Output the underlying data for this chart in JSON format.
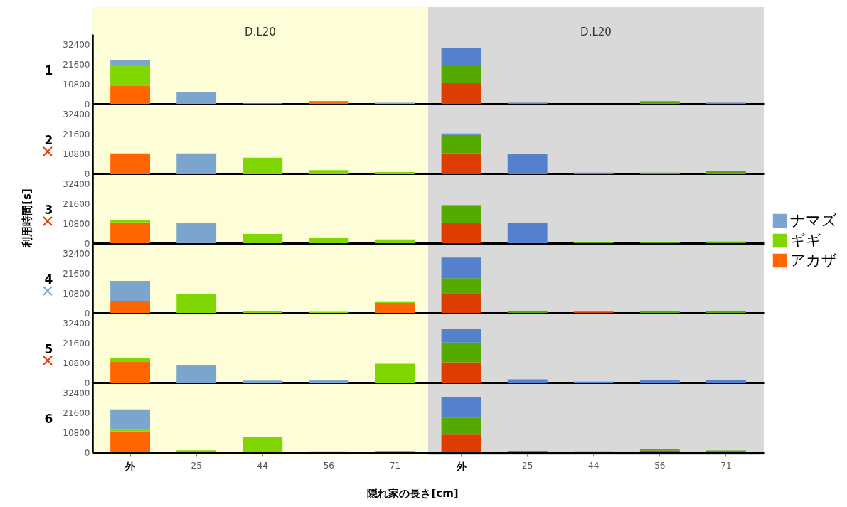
{
  "chart_data": [
    {
      "type": "bar",
      "ylabel": "1",
      "stacked": true,
      "annotations": [
        "D.L20",
        "D.L20"
      ],
      "categories": [
        null,
        null,
        null,
        null,
        null,
        null,
        null,
        null,
        null,
        null
      ],
      "ylim": [
        0,
        37800
      ],
      "yticks": [
        0,
        10800,
        21600,
        32400
      ],
      "tick_labels": "y",
      "series": [
        {
          "color": "#ff6600",
          "values": [
            9900,
            null,
            null,
            800,
            null,
            null,
            null,
            null,
            null,
            null
          ]
        },
        {
          "color": "#80d600",
          "values": [
            11000,
            null,
            null,
            null,
            null,
            null,
            null,
            null,
            null,
            null
          ]
        },
        {
          "color": "#7ba5cc",
          "values": [
            2700,
            6600,
            300,
            700,
            600,
            null,
            null,
            null,
            null,
            null
          ]
        },
        {
          "color": "#dd3d00",
          "values": [
            null,
            null,
            null,
            null,
            null,
            11200,
            null,
            null,
            null,
            null
          ]
        },
        {
          "color": "#55aa00",
          "values": [
            null,
            null,
            null,
            null,
            null,
            9600,
            null,
            null,
            1400,
            null
          ]
        },
        {
          "color": "#5580cc",
          "values": [
            null,
            null,
            null,
            null,
            null,
            9700,
            600,
            null,
            null,
            600
          ]
        }
      ]
    },
    {
      "type": "bar",
      "ylabel": "2",
      "stacked": true,
      "categories": [
        null,
        null,
        null,
        null,
        null,
        null,
        null,
        null,
        null,
        null
      ],
      "ylim": [
        0,
        37800
      ],
      "yticks": [
        0,
        10800,
        21600,
        32400
      ],
      "tick_labels": "y",
      "series": [
        {
          "color": "#ff6600",
          "values": [
            10900,
            null,
            null,
            null,
            null,
            null,
            null,
            null,
            null,
            null
          ]
        },
        {
          "color": "#80d600",
          "values": [
            null,
            null,
            8600,
            1800,
            800,
            null,
            null,
            null,
            null,
            null
          ]
        },
        {
          "color": "#7ba5cc",
          "values": [
            null,
            10900,
            null,
            null,
            null,
            null,
            null,
            null,
            null,
            null
          ]
        },
        {
          "color": "#dd3d00",
          "values": [
            null,
            null,
            null,
            null,
            null,
            11000,
            null,
            null,
            null,
            null
          ]
        },
        {
          "color": "#55aa00",
          "values": [
            null,
            null,
            null,
            null,
            null,
            9900,
            null,
            null,
            500,
            1200
          ]
        },
        {
          "color": "#5580cc",
          "values": [
            null,
            null,
            null,
            null,
            null,
            800,
            10400,
            500,
            null,
            null
          ]
        }
      ]
    },
    {
      "type": "bar",
      "ylabel": "3",
      "stacked": true,
      "legend": "right",
      "annotations": [
        "利用時間[s]"
      ],
      "categories": [
        null,
        null,
        null,
        null,
        null,
        null,
        null,
        null,
        null,
        null
      ],
      "ylim": [
        0,
        37800
      ],
      "yticks": [
        0,
        10800,
        21600,
        32400
      ],
      "tick_labels": "y",
      "series": [
        {
          "name": "アカザ",
          "color": "#ff6600",
          "values": [
            11300,
            null,
            null,
            null,
            null,
            null,
            null,
            null,
            null,
            null
          ]
        },
        {
          "name": "ギギ",
          "color": "#80d600",
          "values": [
            1000,
            null,
            5000,
            2900,
            2000,
            null,
            null,
            null,
            null,
            null
          ]
        },
        {
          "name": "ナマズ",
          "color": "#7ba5cc",
          "values": [
            null,
            10900,
            null,
            null,
            null,
            null,
            null,
            null,
            null,
            null
          ]
        },
        {
          "color": "#dd3d00",
          "values": [
            null,
            null,
            null,
            null,
            null,
            11000,
            null,
            null,
            null,
            null
          ]
        },
        {
          "color": "#55aa00",
          "values": [
            null,
            null,
            null,
            null,
            null,
            9600,
            null,
            400,
            500,
            900
          ]
        },
        {
          "color": "#5580cc",
          "values": [
            null,
            null,
            null,
            null,
            null,
            null,
            10800,
            null,
            null,
            null
          ]
        }
      ]
    },
    {
      "type": "bar",
      "ylabel": "4",
      "stacked": true,
      "categories": [
        null,
        null,
        null,
        null,
        null,
        null,
        null,
        null,
        null,
        null
      ],
      "ylim": [
        0,
        37800
      ],
      "yticks": [
        0,
        10800,
        21600,
        32400
      ],
      "tick_labels": "y",
      "series": [
        {
          "color": "#ff6600",
          "values": [
            6300,
            null,
            null,
            null,
            5400,
            null,
            null,
            null,
            null,
            null
          ]
        },
        {
          "color": "#80d600",
          "values": [
            300,
            10000,
            900,
            600,
            500,
            null,
            null,
            null,
            null,
            null
          ]
        },
        {
          "color": "#7ba5cc",
          "values": [
            10800,
            null,
            null,
            null,
            null,
            null,
            null,
            null,
            null,
            null
          ]
        },
        {
          "color": "#dd3d00",
          "values": [
            null,
            null,
            null,
            null,
            null,
            10700,
            null,
            500,
            null,
            null
          ]
        },
        {
          "color": "#55aa00",
          "values": [
            null,
            null,
            null,
            null,
            null,
            8100,
            800,
            500,
            800,
            1000
          ]
        },
        {
          "color": "#5580cc",
          "values": [
            null,
            null,
            null,
            null,
            null,
            11200,
            null,
            null,
            null,
            null
          ]
        }
      ]
    },
    {
      "type": "bar",
      "ylabel": "5",
      "stacked": true,
      "categories": [
        null,
        null,
        null,
        null,
        null,
        null,
        null,
        null,
        null,
        null
      ],
      "ylim": [
        0,
        37800
      ],
      "yticks": [
        0,
        10800,
        21600,
        32400
      ],
      "tick_labels": "y",
      "series": [
        {
          "color": "#ff6600",
          "values": [
            11500,
            null,
            null,
            null,
            null,
            null,
            null,
            null,
            null,
            null
          ]
        },
        {
          "color": "#80d600",
          "values": [
            1700,
            null,
            null,
            null,
            10200,
            null,
            null,
            null,
            null,
            null
          ]
        },
        {
          "color": "#7ba5cc",
          "values": [
            null,
            9300,
            1100,
            1500,
            null,
            null,
            null,
            null,
            null,
            null
          ]
        },
        {
          "color": "#dd3d00",
          "values": [
            null,
            null,
            null,
            null,
            null,
            11000,
            null,
            null,
            null,
            null
          ]
        },
        {
          "color": "#55aa00",
          "values": [
            null,
            null,
            null,
            null,
            null,
            10800,
            null,
            null,
            null,
            null
          ]
        },
        {
          "color": "#5580cc",
          "values": [
            null,
            null,
            null,
            null,
            null,
            7100,
            1700,
            500,
            1200,
            1400
          ]
        }
      ]
    },
    {
      "type": "bar",
      "ylabel": "6",
      "xlabel": "隠れ家の長さ[cm]",
      "stacked": true,
      "categories": [
        "外",
        "25",
        "44",
        "56",
        "71",
        "外",
        "25",
        "44",
        "56",
        "71"
      ],
      "ylim": [
        0,
        37800
      ],
      "yticks": [
        0,
        10800,
        21600,
        32400
      ],
      "series": [
        {
          "color": "#ff6600",
          "values": [
            11300,
            null,
            null,
            null,
            null,
            null,
            null,
            null,
            null,
            null
          ]
        },
        {
          "color": "#80d600",
          "values": [
            900,
            1100,
            8500,
            500,
            800,
            null,
            null,
            null,
            null,
            null
          ]
        },
        {
          "color": "#7ba5cc",
          "values": [
            11000,
            null,
            null,
            null,
            null,
            null,
            null,
            null,
            null,
            null
          ]
        },
        {
          "color": "#dd3d00",
          "values": [
            null,
            null,
            null,
            null,
            null,
            9500,
            400,
            null,
            1000,
            300
          ]
        },
        {
          "color": "#55aa00",
          "values": [
            null,
            null,
            null,
            null,
            null,
            9300,
            400,
            500,
            500,
            700
          ]
        },
        {
          "color": "#5580cc",
          "values": [
            null,
            null,
            null,
            null,
            null,
            11000,
            null,
            null,
            null,
            null
          ]
        }
      ]
    }
  ]
}
